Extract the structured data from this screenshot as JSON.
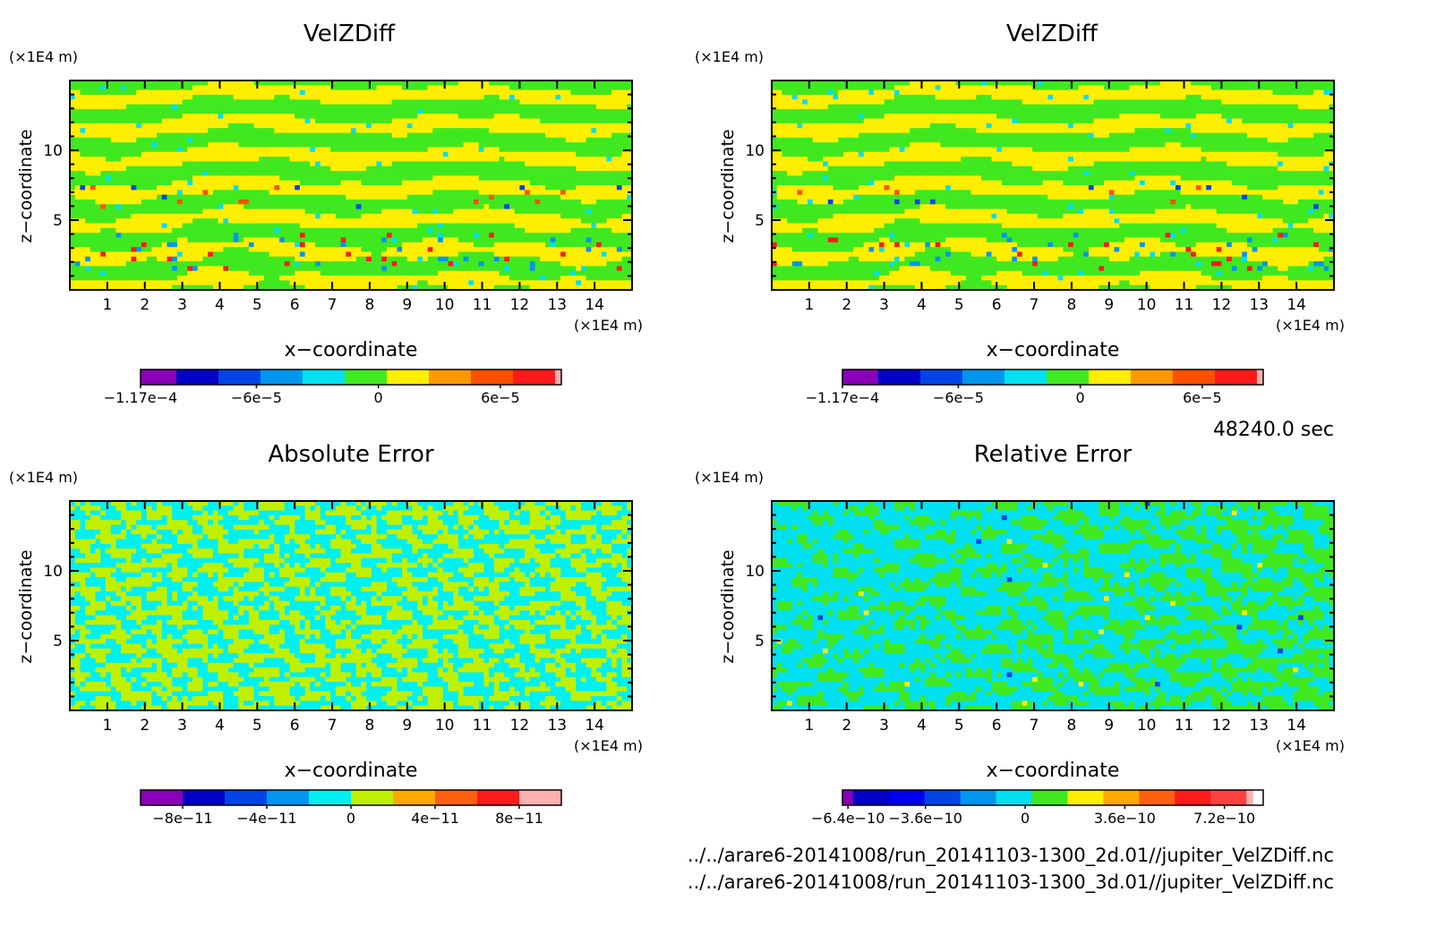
{
  "time_label": "48240.0 sec",
  "files": [
    "../../arare6-20141008/run_20141103-1300_2d.01//jupiter_VelZDiff.nc",
    "../../arare6-20141008/run_20141103-1300_3d.01//jupiter_VelZDiff.nc"
  ],
  "chart_data": [
    {
      "type": "heatmap",
      "title": "VelZDiff",
      "xlabel": "x−coordinate",
      "ylabel": "z−coordinate",
      "x_unit": "(×1E4 m)",
      "y_unit": "(×1E4 m)",
      "xlim": [
        0,
        15
      ],
      "ylim": [
        0,
        15
      ],
      "x_ticks": [
        "1",
        "2",
        "3",
        "4",
        "5",
        "6",
        "7",
        "8",
        "9",
        "10",
        "11",
        "12",
        "13",
        "14"
      ],
      "y_ticks": [
        "5",
        "10"
      ],
      "pattern": "banded",
      "colorbar": {
        "colors": [
          "#8a00b8",
          "#0000c8",
          "#0044e8",
          "#0096f0",
          "#00e0f0",
          "#40e820",
          "#ffee00",
          "#ff9800",
          "#ff5000",
          "#ff1a1a",
          "#ffb0b0"
        ],
        "widths": [
          0.085,
          0.1,
          0.1,
          0.1,
          0.1,
          0.1,
          0.1,
          0.1,
          0.1,
          0.1,
          0.015
        ],
        "tick_labels": [
          "−1.17e−4",
          "−6e−5",
          "0",
          "6e−5"
        ],
        "tick_positions": [
          -0.000117,
          -6e-05,
          0,
          6e-05
        ],
        "range": [
          -0.000117,
          9e-05
        ]
      }
    },
    {
      "type": "heatmap",
      "title": "VelZDiff",
      "xlabel": "x−coordinate",
      "ylabel": "z−coordinate",
      "x_unit": "(×1E4 m)",
      "y_unit": "(×1E4 m)",
      "xlim": [
        0,
        15
      ],
      "ylim": [
        0,
        15
      ],
      "x_ticks": [
        "1",
        "2",
        "3",
        "4",
        "5",
        "6",
        "7",
        "8",
        "9",
        "10",
        "11",
        "12",
        "13",
        "14"
      ],
      "y_ticks": [
        "5",
        "10"
      ],
      "pattern": "banded",
      "colorbar": {
        "colors": [
          "#8a00b8",
          "#0000c8",
          "#0044e8",
          "#0096f0",
          "#00e0f0",
          "#40e820",
          "#ffee00",
          "#ff9800",
          "#ff5000",
          "#ff1a1a",
          "#ffb0b0"
        ],
        "widths": [
          0.085,
          0.1,
          0.1,
          0.1,
          0.1,
          0.1,
          0.1,
          0.1,
          0.1,
          0.1,
          0.015
        ],
        "tick_labels": [
          "−1.17e−4",
          "−6e−5",
          "0",
          "6e−5"
        ],
        "tick_positions": [
          -0.000117,
          -6e-05,
          0,
          6e-05
        ],
        "range": [
          -0.000117,
          9e-05
        ]
      }
    },
    {
      "type": "heatmap",
      "title": "Absolute Error",
      "xlabel": "x−coordinate",
      "ylabel": "z−coordinate",
      "x_unit": "(×1E4 m)",
      "y_unit": "(×1E4 m)",
      "xlim": [
        0,
        15
      ],
      "ylim": [
        0,
        15
      ],
      "x_ticks": [
        "1",
        "2",
        "3",
        "4",
        "5",
        "6",
        "7",
        "8",
        "9",
        "10",
        "11",
        "12",
        "13",
        "14"
      ],
      "y_ticks": [
        "5",
        "10"
      ],
      "pattern": "speckle-yellow-cyan",
      "colorbar": {
        "colors": [
          "#8a00b8",
          "#0000c8",
          "#0044e8",
          "#0096f0",
          "#00f0f0",
          "#c0f000",
          "#ffaa00",
          "#ff6010",
          "#ff1a1a",
          "#ffb0b0"
        ],
        "widths": [
          0.1,
          0.1,
          0.1,
          0.1,
          0.1,
          0.1,
          0.1,
          0.1,
          0.1,
          0.1
        ],
        "tick_labels": [
          "−8e−11",
          "−4e−11",
          "0",
          "4e−11",
          "8e−11"
        ],
        "tick_positions": [
          -8e-11,
          -4e-11,
          0,
          4e-11,
          8e-11
        ],
        "range": [
          -1e-10,
          1e-10
        ]
      }
    },
    {
      "type": "heatmap",
      "title": "Relative Error",
      "xlabel": "x−coordinate",
      "ylabel": "z−coordinate",
      "x_unit": "(×1E4 m)",
      "y_unit": "(×1E4 m)",
      "xlim": [
        0,
        15
      ],
      "ylim": [
        0,
        15
      ],
      "x_ticks": [
        "1",
        "2",
        "3",
        "4",
        "5",
        "6",
        "7",
        "8",
        "9",
        "10",
        "11",
        "12",
        "13",
        "14"
      ],
      "y_ticks": [
        "5",
        "10"
      ],
      "pattern": "speckle-green-cyan",
      "colorbar": {
        "colors": [
          "#8a00b8",
          "#0000c8",
          "#0000f0",
          "#0044e8",
          "#0096f0",
          "#00e0f0",
          "#40e820",
          "#ffee00",
          "#ffaa00",
          "#ff6010",
          "#ff1a1a",
          "#ff4040",
          "#ffb0b0"
        ],
        "widths": [
          0.025,
          0.085,
          0.085,
          0.085,
          0.085,
          0.085,
          0.085,
          0.085,
          0.085,
          0.085,
          0.085,
          0.085,
          0.015
        ],
        "tick_labels": [
          "−6.4e−10",
          "−3.6e−10",
          "0",
          "3.6e−10",
          "7.2e−10"
        ],
        "tick_positions": [
          -6.4e-10,
          -3.6e-10,
          0,
          3.6e-10,
          7.2e-10
        ],
        "range": [
          -6.6e-10,
          8.6e-10
        ]
      }
    }
  ]
}
